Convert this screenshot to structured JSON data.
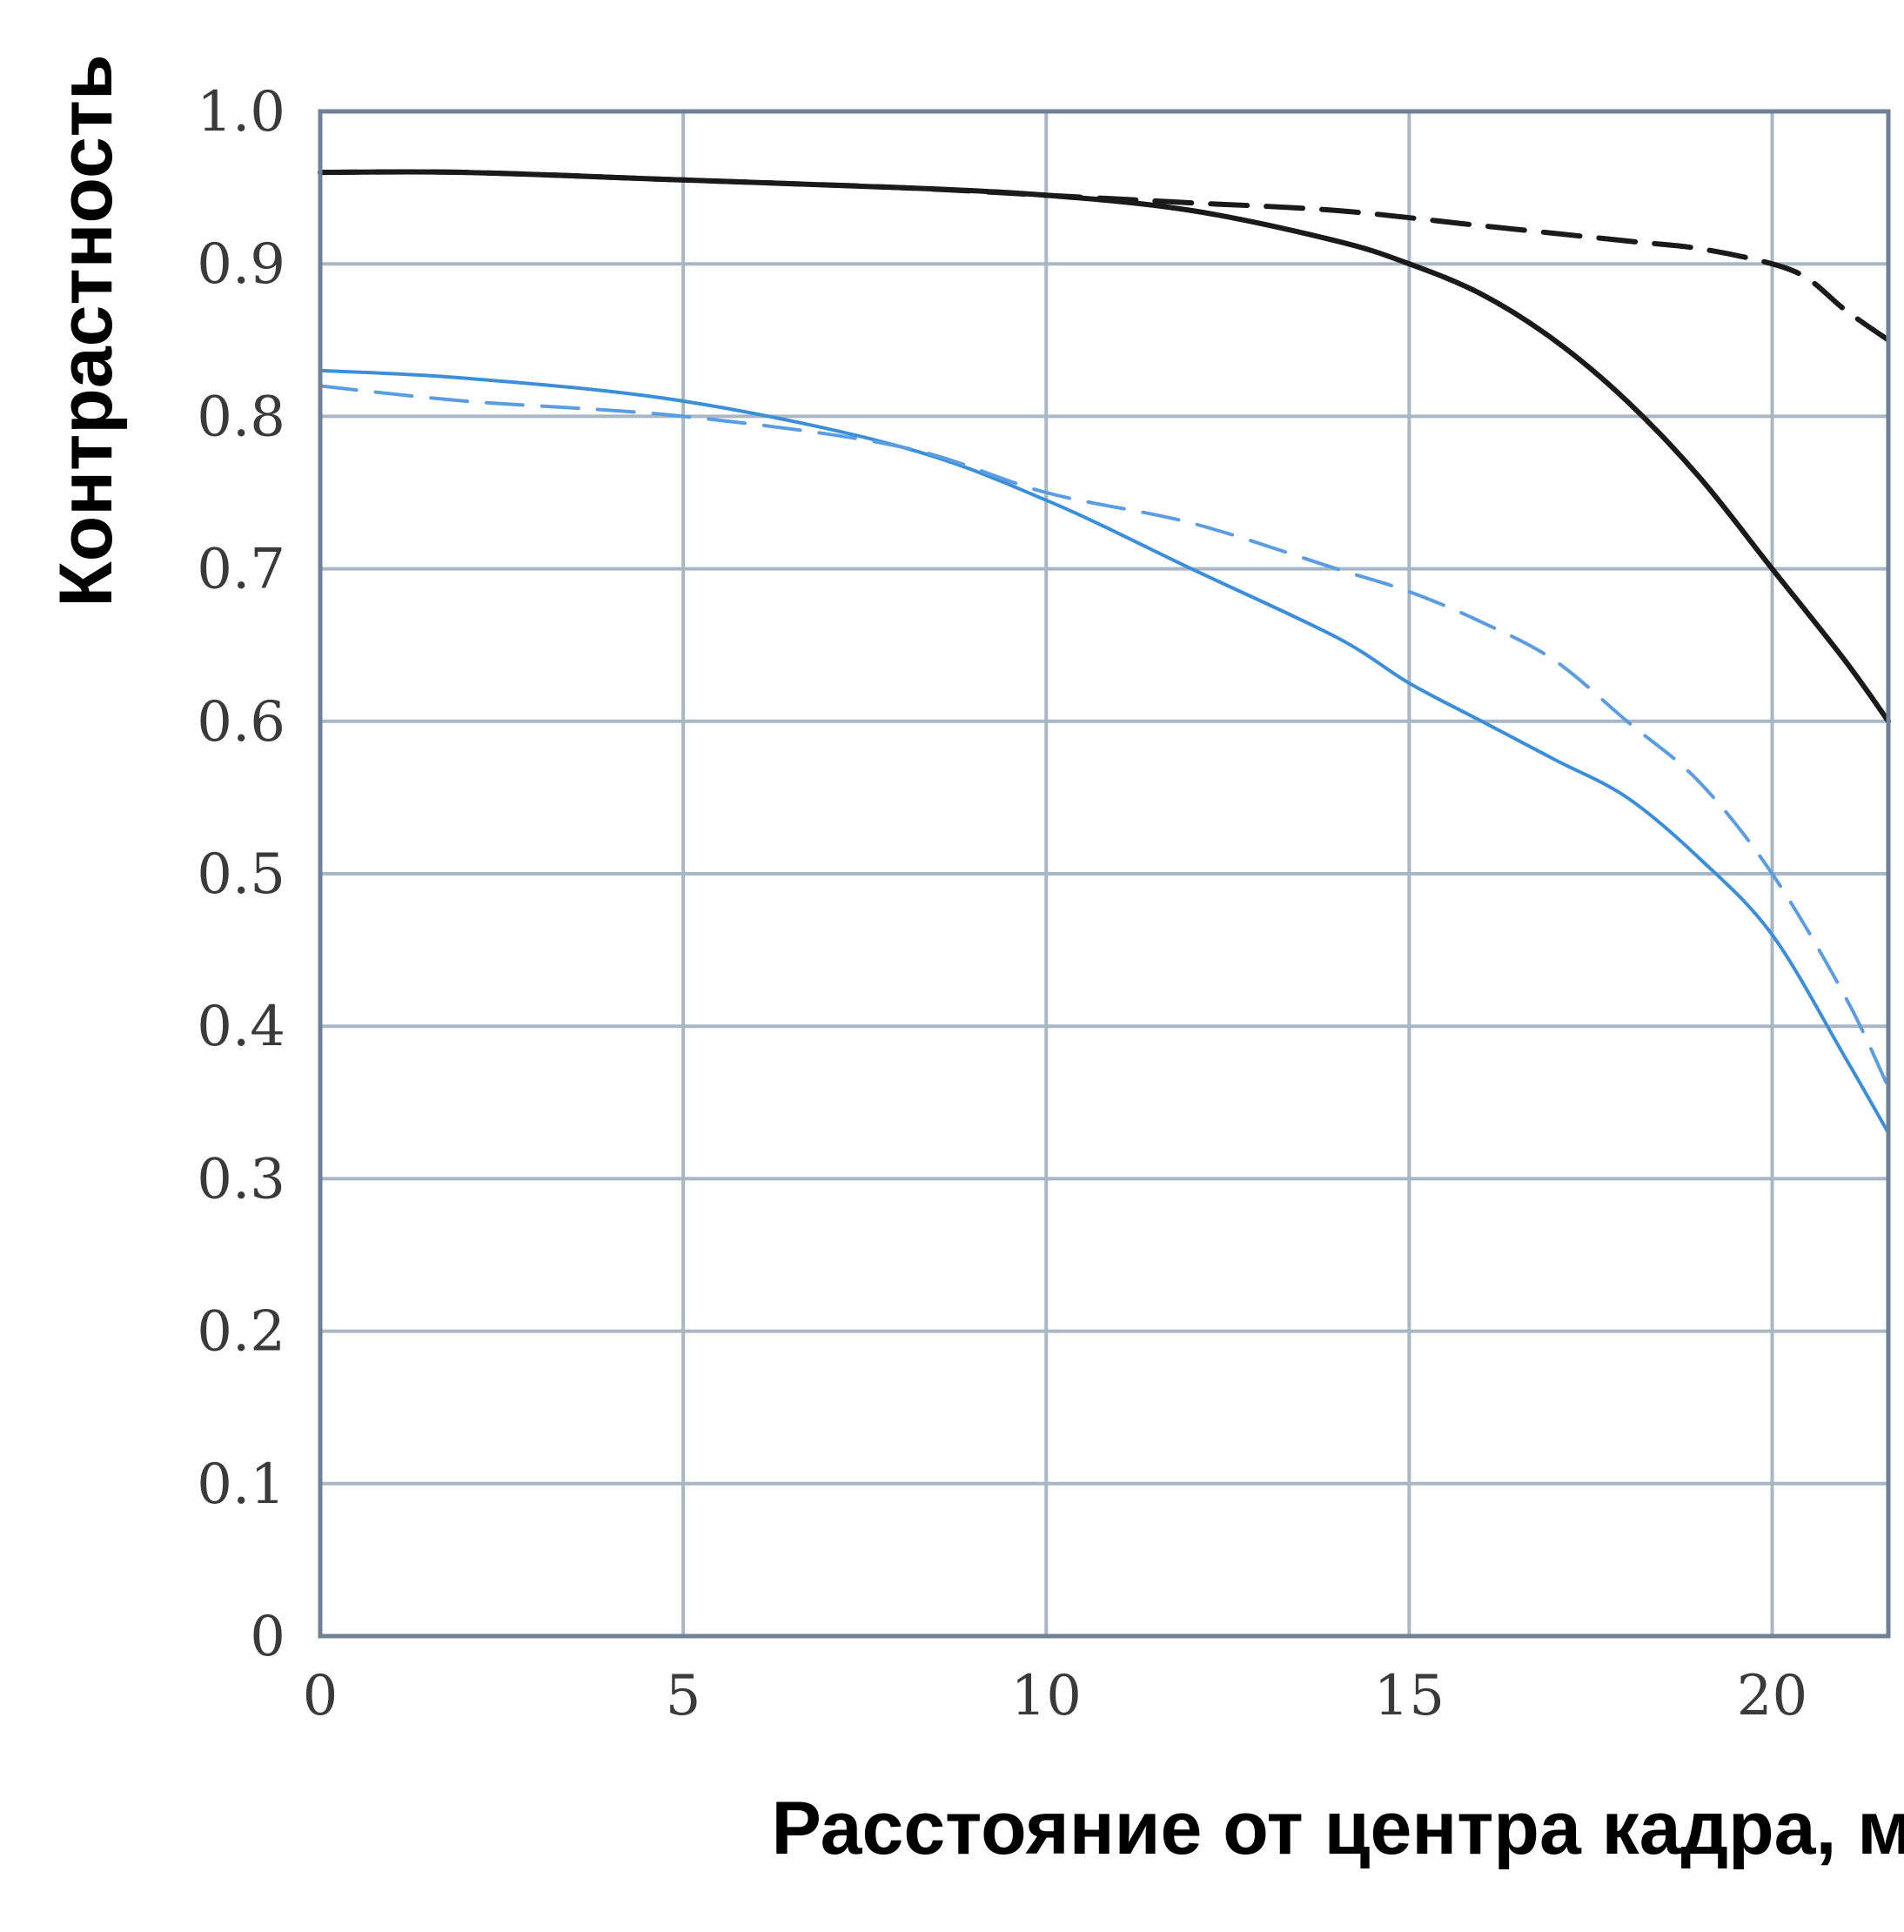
{
  "chart_data": {
    "type": "line",
    "title": "",
    "xlabel": "Расстояние от центра кадра, мм",
    "ylabel": "Контрастность",
    "xlim": [
      0,
      21.6
    ],
    "ylim": [
      0,
      1.0
    ],
    "grid": true,
    "x_ticks": [
      0,
      5,
      10,
      15,
      20
    ],
    "x_tick_labels": [
      "0",
      "5",
      "10",
      "15",
      "20"
    ],
    "y_ticks": [
      0,
      0.1,
      0.2,
      0.3,
      0.4,
      0.5,
      0.6,
      0.7,
      0.8,
      0.9,
      1.0
    ],
    "y_tick_labels": [
      "0",
      "0.1",
      "0.2",
      "0.3",
      "0.4",
      "0.5",
      "0.6",
      "0.7",
      "0.8",
      "0.9",
      "1.0"
    ],
    "series": [
      {
        "color": "#1a1a1a",
        "dash": "solid",
        "x": [
          0,
          2,
          5,
          8,
          10,
          12,
          14,
          15,
          16,
          17,
          18,
          19,
          20,
          21,
          21.6
        ],
        "y": [
          0.96,
          0.96,
          0.955,
          0.95,
          0.945,
          0.935,
          0.915,
          0.9,
          0.88,
          0.85,
          0.81,
          0.76,
          0.7,
          0.64,
          0.6
        ]
      },
      {
        "color": "#1a1a1a",
        "dash": "dashed",
        "x": [
          0,
          2,
          5,
          8,
          10,
          12,
          14,
          16,
          18,
          19,
          20,
          20.5,
          21,
          21.6
        ],
        "y": [
          0.96,
          0.96,
          0.955,
          0.95,
          0.945,
          0.94,
          0.935,
          0.925,
          0.915,
          0.91,
          0.9,
          0.89,
          0.87,
          0.85
        ]
      },
      {
        "color": "#3b8fd8",
        "dash": "solid",
        "x": [
          0,
          2,
          5,
          8,
          10,
          12,
          14,
          15,
          16,
          17,
          18,
          19,
          20,
          21,
          21.6
        ],
        "y": [
          0.83,
          0.825,
          0.81,
          0.78,
          0.745,
          0.7,
          0.655,
          0.625,
          0.6,
          0.575,
          0.55,
          0.51,
          0.46,
          0.38,
          0.33
        ]
      },
      {
        "color": "#5a9de0",
        "dash": "dashed",
        "x": [
          0,
          2,
          5,
          8,
          10,
          12,
          14,
          15,
          16,
          17,
          18,
          19,
          20,
          21,
          21.6
        ],
        "y": [
          0.82,
          0.81,
          0.8,
          0.78,
          0.75,
          0.73,
          0.7,
          0.685,
          0.665,
          0.64,
          0.6,
          0.56,
          0.5,
          0.42,
          0.36
        ]
      }
    ]
  }
}
